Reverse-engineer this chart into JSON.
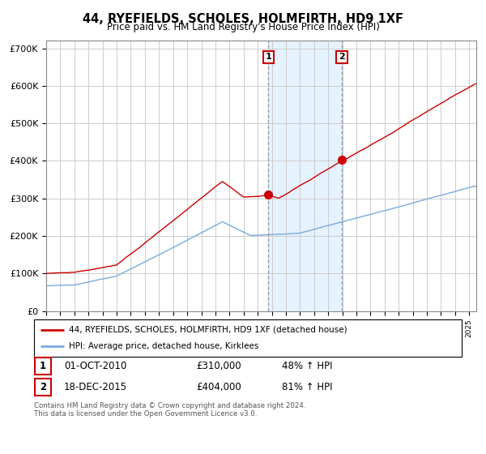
{
  "title": "44, RYEFIELDS, SCHOLES, HOLMFIRTH, HD9 1XF",
  "subtitle": "Price paid vs. HM Land Registry's House Price Index (HPI)",
  "ylim": [
    0,
    720000
  ],
  "yticks": [
    0,
    100000,
    200000,
    300000,
    400000,
    500000,
    600000,
    700000
  ],
  "ytick_labels": [
    "£0",
    "£100K",
    "£200K",
    "£300K",
    "£400K",
    "£500K",
    "£600K",
    "£700K"
  ],
  "red_color": "#cc0000",
  "blue_color": "#7aaadd",
  "grid_color": "#cccccc",
  "shade_color": "#ddeeff",
  "transaction1_x": 2010.75,
  "transaction1_y": 310000,
  "transaction1_label": "1",
  "transaction2_x": 2015.96,
  "transaction2_y": 404000,
  "transaction2_label": "2",
  "shade_x1": 2010.75,
  "shade_x2": 2015.96,
  "xmin": 1995.0,
  "xmax": 2025.5,
  "footnote": "Contains HM Land Registry data © Crown copyright and database right 2024.\nThis data is licensed under the Open Government Licence v3.0.",
  "legend_entry1": "44, RYEFIELDS, SCHOLES, HOLMFIRTH, HD9 1XF (detached house)",
  "legend_entry2": "HPI: Average price, detached house, Kirklees",
  "table_row1": [
    "1",
    "01-OCT-2010",
    "£310,000",
    "48% ↑ HPI"
  ],
  "table_row2": [
    "2",
    "18-DEC-2015",
    "£404,000",
    "81% ↑ HPI"
  ]
}
